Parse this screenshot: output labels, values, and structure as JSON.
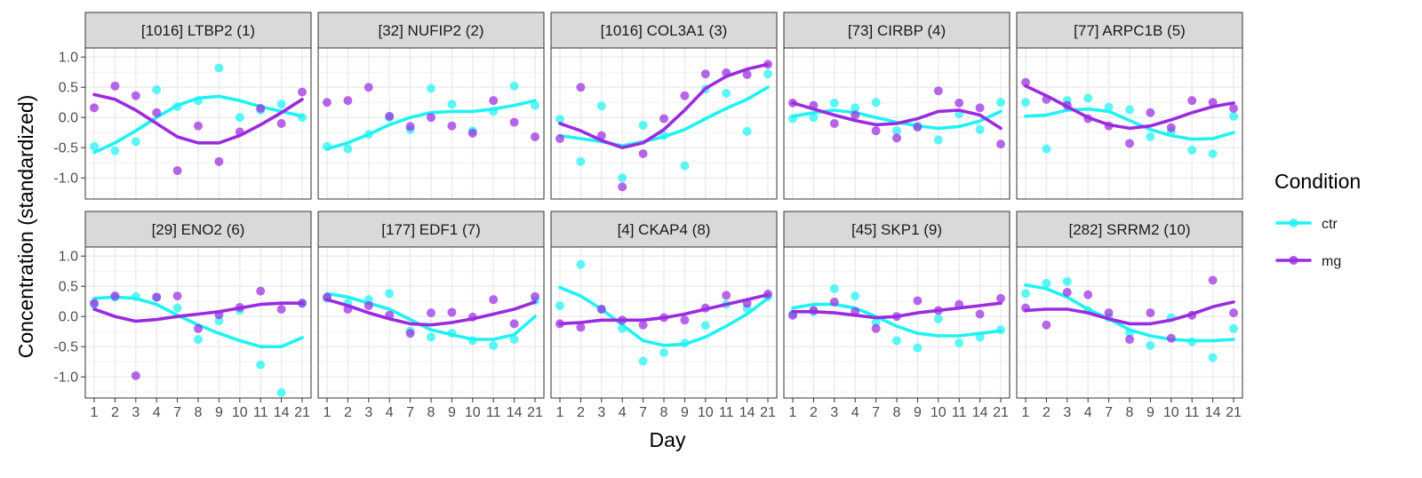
{
  "chart_data": {
    "type": "line",
    "xlabel": "Day",
    "ylabel": "Concentration (standardized)",
    "categories": [
      "1",
      "2",
      "3",
      "4",
      "7",
      "8",
      "9",
      "10",
      "11",
      "14",
      "21"
    ],
    "y_ticks": [
      "1.0",
      "0.5",
      "0.0",
      "-0.5",
      "-1.0"
    ],
    "ylim": [
      -1.35,
      1.15
    ],
    "grid": true,
    "legend": {
      "title": "Condition",
      "position": "right",
      "items": [
        {
          "label": "ctr",
          "color": "#1ef3f3"
        },
        {
          "label": "mg",
          "color": "#9b2be0"
        }
      ]
    },
    "colors": {
      "ctr": "#1ef3f3",
      "mg": "#9b2be0",
      "strip_bg": "#d9d9d9",
      "grid": "#ebebeb"
    },
    "panels": [
      {
        "title": "[1016] LTBP2 (1)",
        "series": [
          {
            "name": "ctr",
            "points": [
              -0.48,
              -0.55,
              -0.4,
              0.46,
              0.18,
              0.28,
              0.82,
              0.0,
              0.12,
              0.22,
              0.0
            ],
            "fit": [
              -0.58,
              -0.42,
              -0.22,
              0.0,
              0.2,
              0.32,
              0.35,
              0.28,
              0.18,
              0.1,
              0.02
            ]
          },
          {
            "name": "mg",
            "points": [
              0.16,
              0.52,
              0.36,
              0.08,
              -0.88,
              -0.14,
              -0.73,
              -0.24,
              0.15,
              -0.1,
              0.42
            ],
            "fit": [
              0.38,
              0.3,
              0.12,
              -0.1,
              -0.32,
              -0.42,
              -0.42,
              -0.3,
              -0.12,
              0.08,
              0.3
            ]
          }
        ]
      },
      {
        "title": "[32] NUFIP2 (2)",
        "series": [
          {
            "name": "ctr",
            "points": [
              -0.48,
              -0.52,
              -0.28,
              0.0,
              -0.2,
              0.48,
              0.22,
              -0.22,
              0.1,
              0.52,
              0.2
            ],
            "fit": [
              -0.52,
              -0.42,
              -0.28,
              -0.12,
              0.0,
              0.08,
              0.1,
              0.1,
              0.14,
              0.2,
              0.28
            ]
          },
          {
            "name": "mg",
            "points": [
              0.25,
              0.28,
              0.5,
              0.02,
              -0.15,
              0.0,
              -0.14,
              -0.26,
              0.28,
              -0.08,
              -0.32
            ]
          }
        ]
      },
      {
        "title": "[1016] COL3A1 (3)",
        "series": [
          {
            "name": "ctr",
            "points": [
              -0.03,
              -0.73,
              0.19,
              -1.0,
              -0.13,
              -0.3,
              -0.8,
              0.47,
              0.4,
              -0.23,
              0.72
            ],
            "fit": [
              -0.3,
              -0.35,
              -0.4,
              -0.47,
              -0.4,
              -0.32,
              -0.2,
              -0.02,
              0.15,
              0.3,
              0.5
            ]
          },
          {
            "name": "mg",
            "points": [
              -0.35,
              0.5,
              -0.3,
              -1.15,
              -0.6,
              -0.02,
              0.36,
              0.72,
              0.74,
              0.71,
              0.88
            ],
            "fit": [
              -0.1,
              -0.22,
              -0.38,
              -0.5,
              -0.42,
              -0.2,
              0.12,
              0.48,
              0.68,
              0.8,
              0.88
            ]
          }
        ]
      },
      {
        "title": "[73] CIRBP (4)",
        "series": [
          {
            "name": "ctr",
            "points": [
              -0.02,
              0.0,
              0.24,
              0.16,
              0.25,
              -0.22,
              -0.14,
              -0.37,
              0.06,
              -0.2,
              0.25
            ],
            "fit": [
              0.02,
              0.08,
              0.12,
              0.08,
              0.0,
              -0.08,
              -0.14,
              -0.18,
              -0.15,
              -0.06,
              0.1
            ]
          },
          {
            "name": "mg",
            "points": [
              0.24,
              0.2,
              -0.1,
              0.04,
              -0.22,
              -0.34,
              -0.16,
              0.44,
              0.24,
              0.16,
              -0.44
            ],
            "fit": [
              0.24,
              0.14,
              0.04,
              -0.05,
              -0.12,
              -0.1,
              -0.02,
              0.1,
              0.12,
              0.04,
              -0.18
            ]
          }
        ]
      },
      {
        "title": "[77] ARPC1B (5)",
        "series": [
          {
            "name": "ctr",
            "points": [
              0.25,
              -0.52,
              0.28,
              0.32,
              0.17,
              0.13,
              -0.32,
              -0.24,
              -0.54,
              -0.6,
              0.02
            ],
            "fit": [
              0.02,
              0.04,
              0.12,
              0.14,
              0.1,
              -0.05,
              -0.2,
              -0.3,
              -0.36,
              -0.35,
              -0.25
            ]
          },
          {
            "name": "mg",
            "points": [
              0.58,
              0.3,
              0.2,
              -0.02,
              -0.14,
              -0.43,
              0.08,
              -0.17,
              0.28,
              0.25,
              0.15
            ],
            "fit": [
              0.52,
              0.36,
              0.18,
              0.0,
              -0.12,
              -0.18,
              -0.14,
              -0.04,
              0.08,
              0.18,
              0.24
            ]
          }
        ]
      },
      {
        "title": "[29] ENO2 (6)",
        "series": [
          {
            "name": "ctr",
            "points": [
              0.2,
              0.32,
              0.33,
              0.32,
              0.14,
              -0.38,
              -0.07,
              0.1,
              -0.8,
              -1.26,
              0.22
            ],
            "fit": [
              0.3,
              0.32,
              0.3,
              0.2,
              0.02,
              -0.14,
              -0.28,
              -0.4,
              -0.5,
              -0.5,
              -0.35
            ]
          },
          {
            "name": "mg",
            "points": [
              0.22,
              0.34,
              -0.98,
              0.32,
              0.34,
              -0.2,
              0.03,
              0.15,
              0.42,
              0.12,
              0.22
            ],
            "fit": [
              0.12,
              0.0,
              -0.08,
              -0.05,
              0.0,
              0.04,
              0.08,
              0.14,
              0.2,
              0.22,
              0.22
            ]
          }
        ]
      },
      {
        "title": "[177] EDF1 (7)",
        "series": [
          {
            "name": "ctr",
            "points": [
              0.3,
              0.22,
              0.28,
              0.38,
              -0.24,
              -0.34,
              -0.28,
              -0.4,
              -0.48,
              -0.38,
              0.26
            ],
            "fit": [
              0.38,
              0.32,
              0.22,
              0.12,
              -0.05,
              -0.22,
              -0.3,
              -0.38,
              -0.38,
              -0.3,
              0.0
            ]
          },
          {
            "name": "mg",
            "points": [
              0.32,
              0.12,
              0.18,
              0.02,
              -0.28,
              0.06,
              0.07,
              -0.01,
              0.28,
              -0.12,
              0.33
            ],
            "fit": [
              0.28,
              0.18,
              0.06,
              -0.04,
              -0.12,
              -0.14,
              -0.1,
              -0.04,
              0.04,
              0.12,
              0.24
            ]
          }
        ]
      },
      {
        "title": "[4] CKAP4 (8)",
        "series": [
          {
            "name": "ctr",
            "points": [
              0.18,
              0.86,
              0.12,
              -0.2,
              -0.74,
              -0.6,
              -0.44,
              -0.15,
              0.2,
              0.13,
              0.33
            ],
            "fit": [
              0.48,
              0.34,
              0.12,
              -0.14,
              -0.4,
              -0.48,
              -0.46,
              -0.34,
              -0.16,
              0.04,
              0.3
            ]
          },
          {
            "name": "mg",
            "points": [
              -0.12,
              -0.18,
              0.12,
              -0.06,
              -0.14,
              -0.02,
              -0.06,
              0.14,
              0.35,
              0.22,
              0.37
            ],
            "fit": [
              -0.12,
              -0.1,
              -0.06,
              -0.06,
              -0.06,
              -0.02,
              0.04,
              0.12,
              0.2,
              0.28,
              0.36
            ]
          }
        ]
      },
      {
        "title": "[45] SKP1 (9)",
        "series": [
          {
            "name": "ctr",
            "points": [
              0.04,
              0.08,
              0.46,
              0.34,
              -0.1,
              -0.4,
              -0.52,
              -0.04,
              -0.44,
              -0.34,
              -0.22
            ],
            "fit": [
              0.14,
              0.2,
              0.2,
              0.14,
              0.0,
              -0.16,
              -0.28,
              -0.32,
              -0.32,
              -0.28,
              -0.24
            ]
          },
          {
            "name": "mg",
            "points": [
              0.02,
              0.1,
              0.24,
              0.08,
              -0.2,
              0.0,
              0.26,
              0.1,
              0.2,
              0.04,
              0.3
            ],
            "fit": [
              0.08,
              0.08,
              0.06,
              0.02,
              -0.02,
              0.0,
              0.06,
              0.1,
              0.14,
              0.18,
              0.22
            ]
          }
        ]
      },
      {
        "title": "[282] SRRM2 (10)",
        "series": [
          {
            "name": "ctr",
            "points": [
              0.38,
              0.55,
              0.58,
              0.1,
              -0.02,
              -0.27,
              -0.48,
              -0.02,
              -0.42,
              -0.68,
              -0.2
            ],
            "fit": [
              0.52,
              0.46,
              0.32,
              0.12,
              -0.04,
              -0.22,
              -0.32,
              -0.38,
              -0.4,
              -0.4,
              -0.38
            ]
          },
          {
            "name": "mg",
            "points": [
              0.14,
              -0.14,
              0.4,
              0.36,
              0.06,
              -0.38,
              0.06,
              -0.36,
              0.02,
              0.6,
              0.06
            ],
            "fit": [
              0.1,
              0.12,
              0.12,
              0.06,
              -0.04,
              -0.12,
              -0.12,
              -0.06,
              0.04,
              0.16,
              0.24
            ]
          }
        ]
      }
    ]
  }
}
